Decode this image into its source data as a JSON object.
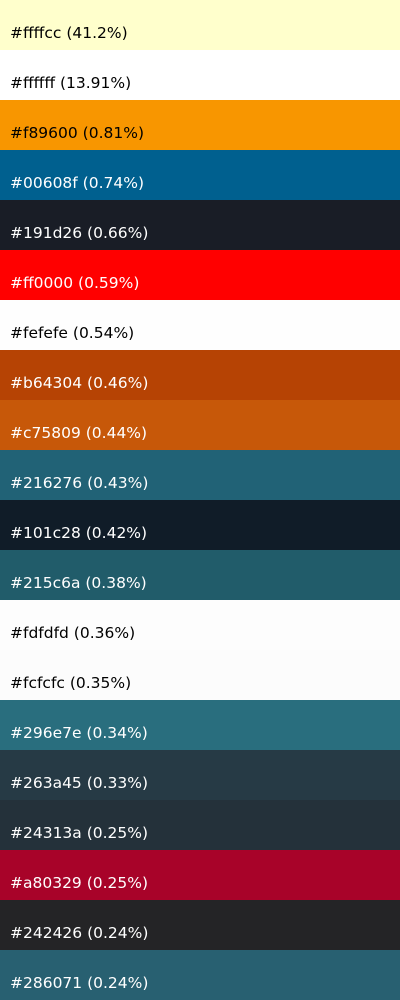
{
  "swatches": [
    {
      "label": "#ffffcc (41.2%)",
      "color": "#ffffcc",
      "text_color": "#000000"
    },
    {
      "label": "#ffffff (13.91%)",
      "color": "#ffffff",
      "text_color": "#000000"
    },
    {
      "label": "#f89600 (0.81%)",
      "color": "#f89600",
      "text_color": "#000000"
    },
    {
      "label": "#00608f (0.74%)",
      "color": "#00608f",
      "text_color": "#ffffff"
    },
    {
      "label": "#191d26 (0.66%)",
      "color": "#191d26",
      "text_color": "#ffffff"
    },
    {
      "label": "#ff0000 (0.59%)",
      "color": "#ff0000",
      "text_color": "#ffffff"
    },
    {
      "label": "#fefefe (0.54%)",
      "color": "#fefefe",
      "text_color": "#000000"
    },
    {
      "label": "#b64304 (0.46%)",
      "color": "#b64304",
      "text_color": "#ffffff"
    },
    {
      "label": "#c75809 (0.44%)",
      "color": "#c75809",
      "text_color": "#ffffff"
    },
    {
      "label": "#216276 (0.43%)",
      "color": "#216276",
      "text_color": "#ffffff"
    },
    {
      "label": "#101c28 (0.42%)",
      "color": "#101c28",
      "text_color": "#ffffff"
    },
    {
      "label": "#215c6a (0.38%)",
      "color": "#215c6a",
      "text_color": "#ffffff"
    },
    {
      "label": "#fdfdfd (0.36%)",
      "color": "#fdfdfd",
      "text_color": "#000000"
    },
    {
      "label": "#fcfcfc (0.35%)",
      "color": "#fcfcfc",
      "text_color": "#000000"
    },
    {
      "label": "#296e7e (0.34%)",
      "color": "#296e7e",
      "text_color": "#ffffff"
    },
    {
      "label": "#263a45 (0.33%)",
      "color": "#263a45",
      "text_color": "#ffffff"
    },
    {
      "label": "#24313a (0.25%)",
      "color": "#24313a",
      "text_color": "#ffffff"
    },
    {
      "label": "#a80329 (0.25%)",
      "color": "#a80329",
      "text_color": "#ffffff"
    },
    {
      "label": "#242426 (0.24%)",
      "color": "#242426",
      "text_color": "#ffffff"
    },
    {
      "label": "#286071 (0.24%)",
      "color": "#286071",
      "text_color": "#ffffff"
    }
  ]
}
